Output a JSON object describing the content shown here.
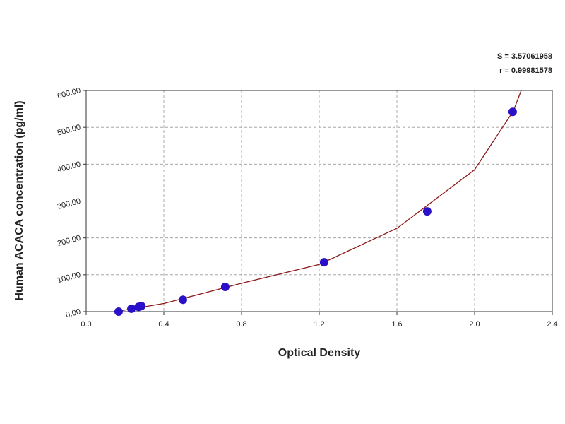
{
  "chart_data": {
    "type": "scatter",
    "annotations": [
      "S = 3.57061958",
      "r = 0.99981578"
    ],
    "x_label": "Optical Density",
    "y_label": "Human ACACA concentration (pg/ml)",
    "points": {
      "color": "#2a10c8",
      "x": [
        0.167,
        0.233,
        0.27,
        0.284,
        0.498,
        0.716,
        1.225,
        1.756,
        2.196
      ],
      "y": [
        0,
        8,
        13,
        15,
        32,
        67,
        134,
        272,
        542
      ]
    },
    "fit": {
      "color": "#8b1a1a",
      "x": [
        0.15,
        0.4,
        0.8,
        1.2,
        1.6,
        2.0,
        2.2,
        2.24
      ],
      "y": [
        0,
        22,
        77,
        128,
        226,
        385,
        545,
        600
      ]
    },
    "xlim": [
      0,
      2.4
    ],
    "ylim": [
      0,
      600
    ],
    "xticks": [
      {
        "value": 0,
        "label": "0.0"
      },
      {
        "value": 0.4,
        "label": "0.4"
      },
      {
        "value": 0.8,
        "label": "0.8"
      },
      {
        "value": 1.2,
        "label": "1.2"
      },
      {
        "value": 1.6,
        "label": "1.6"
      },
      {
        "value": 2.0,
        "label": "2.0"
      },
      {
        "value": 2.4,
        "label": "2.4"
      }
    ],
    "yticks": [
      {
        "value": 0,
        "label": "0.00"
      },
      {
        "value": 100,
        "label": "100.00"
      },
      {
        "value": 200,
        "label": "200.00"
      },
      {
        "value": 300,
        "label": "300.00"
      },
      {
        "value": 400,
        "label": "400.00"
      },
      {
        "value": 500,
        "label": "500.00"
      },
      {
        "value": 600,
        "label": "600.00"
      }
    ],
    "grid": true
  }
}
